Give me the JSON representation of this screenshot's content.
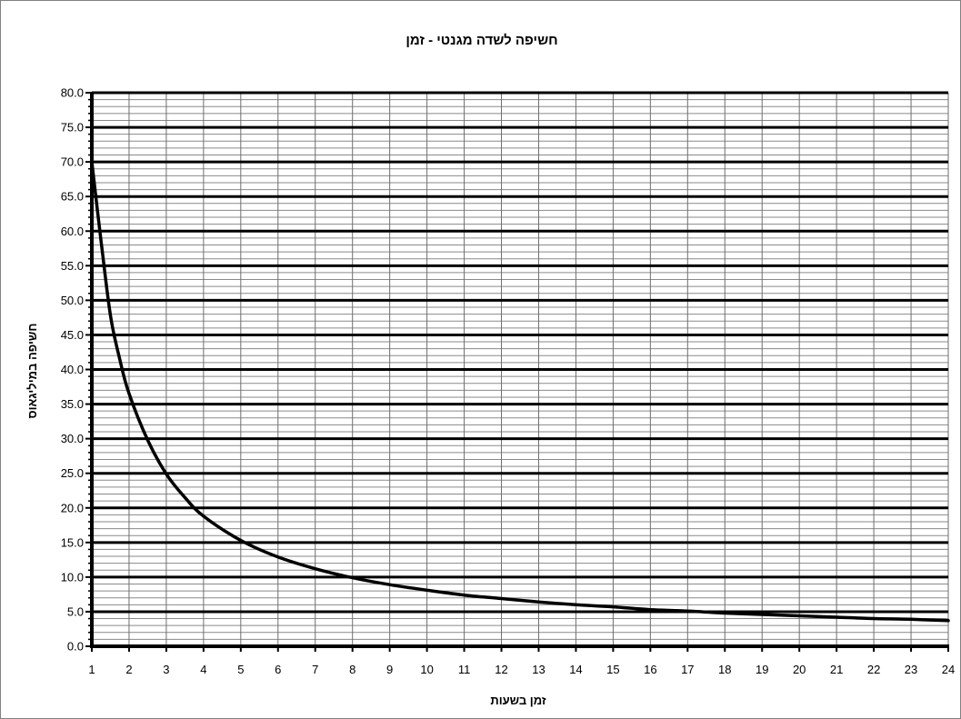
{
  "chart_data": {
    "type": "line",
    "title": "חשיפה לשדה מגנטי - זמן",
    "xlabel": "זמן בשעות",
    "ylabel": "חשיפה במיליגאוס",
    "xlim": [
      1,
      24
    ],
    "ylim": [
      0,
      80
    ],
    "x_ticks": [
      "1",
      "2",
      "3",
      "4",
      "5",
      "6",
      "7",
      "8",
      "9",
      "10",
      "11",
      "12",
      "13",
      "14",
      "15",
      "16",
      "17",
      "18",
      "19",
      "20",
      "21",
      "22",
      "23",
      "24"
    ],
    "y_ticks": [
      "0.0",
      "5.0",
      "10.0",
      "15.0",
      "20.0",
      "25.0",
      "30.0",
      "35.0",
      "40.0",
      "45.0",
      "50.0",
      "55.0",
      "60.0",
      "65.0",
      "70.0",
      "75.0",
      "80.0"
    ],
    "grid": true,
    "legend": "none",
    "series": [
      {
        "color": "#000000",
        "x": [
          1,
          1.25,
          1.5,
          1.75,
          2,
          2.5,
          3,
          3.5,
          4,
          5,
          6,
          7,
          8,
          9,
          10,
          11,
          12,
          13,
          14,
          15,
          16,
          17,
          18,
          19,
          20,
          21,
          22,
          23,
          24
        ],
        "y": [
          70.0,
          58.5,
          47.8,
          41.5,
          36.5,
          29.8,
          24.9,
          21.5,
          18.8,
          15.3,
          12.9,
          11.2,
          9.9,
          8.9,
          8.1,
          7.4,
          6.9,
          6.4,
          6.0,
          5.7,
          5.3,
          5.1,
          4.8,
          4.6,
          4.4,
          4.2,
          4.0,
          3.9,
          3.7
        ]
      }
    ]
  }
}
